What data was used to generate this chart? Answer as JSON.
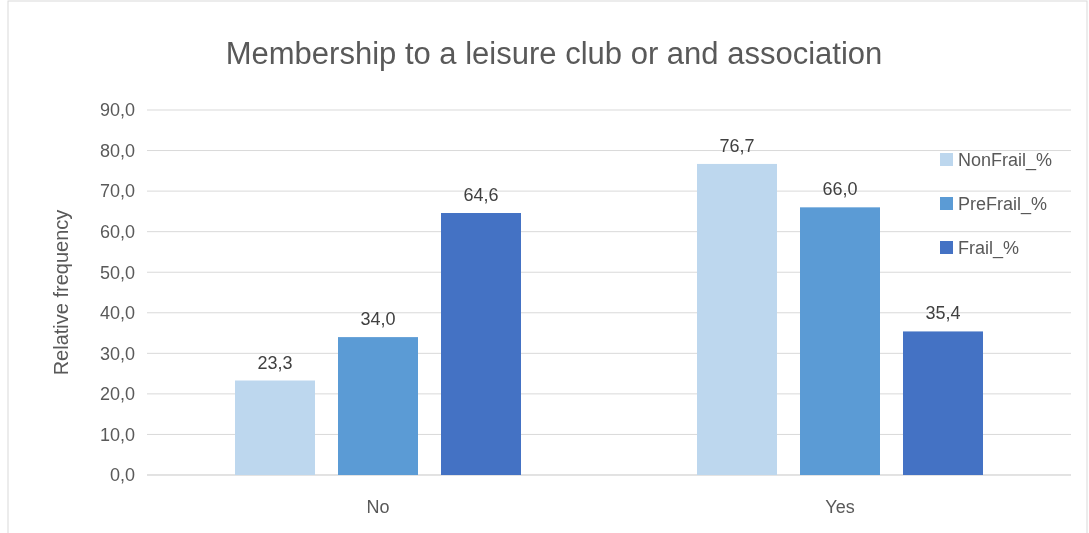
{
  "chart_data": {
    "type": "bar",
    "title": "Membership to a leisure club or and association",
    "ylabel": "Relative frequency",
    "categories": [
      "No",
      "Yes"
    ],
    "series": [
      {
        "name": "NonFrail_%",
        "color": "#bdd7ee",
        "values": [
          23.3,
          76.7
        ],
        "value_labels": [
          "23,3",
          "76,7"
        ]
      },
      {
        "name": "PreFrail_%",
        "color": "#5b9bd5",
        "values": [
          34.0,
          66.0
        ],
        "value_labels": [
          "34,0",
          "66,0"
        ]
      },
      {
        "name": "Frail_%",
        "color": "#4472c4",
        "values": [
          64.6,
          35.4
        ],
        "value_labels": [
          "64,6",
          "35,4"
        ]
      }
    ],
    "ylim": [
      0,
      90
    ],
    "yticks": [
      {
        "value": 0,
        "label": "0,0"
      },
      {
        "value": 10,
        "label": "10,0"
      },
      {
        "value": 20,
        "label": "20,0"
      },
      {
        "value": 30,
        "label": "30,0"
      },
      {
        "value": 40,
        "label": "40,0"
      },
      {
        "value": 50,
        "label": "50,0"
      },
      {
        "value": 60,
        "label": "60,0"
      },
      {
        "value": 70,
        "label": "70,0"
      },
      {
        "value": 80,
        "label": "80,0"
      },
      {
        "value": 90,
        "label": "90,0"
      }
    ],
    "grid": "y",
    "legend": "right"
  }
}
